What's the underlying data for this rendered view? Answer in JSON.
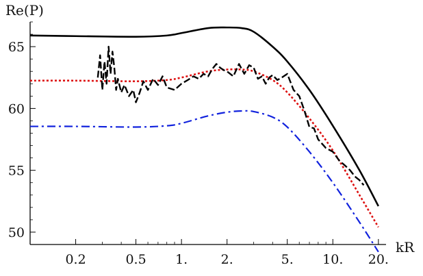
{
  "chart_data": {
    "type": "line",
    "ylabel": "Re(P)",
    "xlabel": "kR",
    "xscale": "log",
    "xlim": [
      0.1,
      22
    ],
    "ylim": [
      49,
      67
    ],
    "grid": false,
    "legend": "none",
    "xticks": [
      {
        "value": 0.2,
        "label": "0.2"
      },
      {
        "value": 0.5,
        "label": "0.5"
      },
      {
        "value": 1,
        "label": "1."
      },
      {
        "value": 2,
        "label": "2."
      },
      {
        "value": 5,
        "label": "5."
      },
      {
        "value": 10,
        "label": "10."
      },
      {
        "value": 20,
        "label": "20."
      }
    ],
    "yticks": [
      {
        "value": 50,
        "label": "50"
      },
      {
        "value": 55,
        "label": "55"
      },
      {
        "value": 60,
        "label": "60"
      },
      {
        "value": 65,
        "label": "65"
      }
    ],
    "series": [
      {
        "style": "solid",
        "color": "#000000",
        "x": [
          0.1,
          0.2,
          0.5,
          0.8,
          1.0,
          1.5,
          2.0,
          2.5,
          3.0,
          4.0,
          5.0,
          7.0,
          10.0,
          15.0,
          20.0
        ],
        "y": [
          65.9,
          65.85,
          65.8,
          65.9,
          66.1,
          66.5,
          66.55,
          66.5,
          66.2,
          65.0,
          63.8,
          61.5,
          58.6,
          55.0,
          52.1
        ]
      },
      {
        "style": "dotted",
        "color": "#dd1111",
        "x": [
          0.1,
          0.2,
          0.5,
          0.8,
          1.0,
          1.5,
          2.0,
          2.5,
          3.0,
          4.0,
          5.0,
          7.0,
          10.0,
          15.0,
          20.0
        ],
        "y": [
          62.25,
          62.25,
          62.2,
          62.3,
          62.5,
          63.0,
          63.15,
          63.15,
          63.0,
          62.3,
          61.3,
          59.2,
          56.6,
          53.0,
          50.4
        ]
      },
      {
        "style": "dash-dot",
        "color": "#1122dd",
        "x": [
          0.1,
          0.2,
          0.5,
          0.8,
          1.0,
          1.5,
          2.0,
          2.5,
          3.0,
          4.0,
          5.0,
          7.0,
          10.0,
          15.0,
          20.0
        ],
        "y": [
          58.55,
          58.55,
          58.5,
          58.6,
          58.8,
          59.4,
          59.7,
          59.8,
          59.75,
          59.3,
          58.5,
          56.5,
          54.0,
          50.8,
          48.4
        ]
      },
      {
        "style": "dashed-noisy",
        "color": "#000000",
        "x": [
          0.28,
          0.29,
          0.3,
          0.31,
          0.32,
          0.33,
          0.34,
          0.35,
          0.36,
          0.37,
          0.38,
          0.4,
          0.42,
          0.45,
          0.48,
          0.5,
          0.53,
          0.56,
          0.6,
          0.65,
          0.7,
          0.75,
          0.8,
          0.9,
          1.0,
          1.1,
          1.2,
          1.3,
          1.4,
          1.5,
          1.6,
          1.7,
          1.8,
          1.9,
          2.0,
          2.2,
          2.4,
          2.6,
          2.8,
          3.0,
          3.2,
          3.4,
          3.6,
          3.8,
          4.0,
          4.3,
          4.6,
          5.0,
          5.5,
          6.0,
          6.5,
          7.0,
          7.5,
          8.0,
          9.0,
          10.0,
          11.0,
          12.0,
          13.0,
          14.0,
          15.0,
          16.0
        ],
        "y": [
          62.5,
          64.3,
          61.5,
          63.8,
          62.0,
          65.0,
          62.8,
          64.6,
          63.3,
          61.5,
          62.4,
          61.3,
          61.9,
          61.0,
          61.5,
          60.5,
          61.3,
          62.2,
          61.5,
          62.4,
          61.9,
          62.6,
          61.7,
          61.5,
          62.0,
          62.3,
          62.6,
          62.4,
          62.8,
          62.6,
          63.2,
          63.6,
          63.3,
          63.1,
          63.0,
          62.6,
          63.6,
          62.8,
          63.5,
          63.3,
          62.4,
          62.6,
          62.0,
          62.5,
          62.7,
          62.3,
          62.5,
          62.8,
          61.5,
          61.0,
          59.8,
          58.5,
          58.4,
          57.5,
          56.8,
          56.5,
          55.8,
          55.4,
          55.0,
          54.5,
          54.2,
          53.8
        ]
      }
    ]
  }
}
